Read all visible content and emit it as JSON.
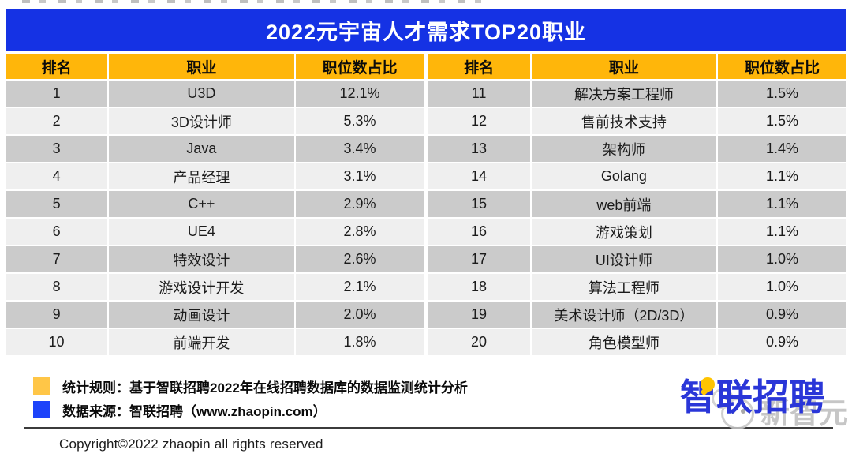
{
  "title_bar": {
    "title": "2022元宇宙人才需求TOP20职业"
  },
  "table": {
    "headers": [
      "排名",
      "职业",
      "职位数占比"
    ],
    "left_rows": [
      {
        "rank": "1",
        "job": "U3D",
        "share": "12.1%"
      },
      {
        "rank": "2",
        "job": "3D设计师",
        "share": "5.3%"
      },
      {
        "rank": "3",
        "job": "Java",
        "share": "3.4%"
      },
      {
        "rank": "4",
        "job": "产品经理",
        "share": "3.1%"
      },
      {
        "rank": "5",
        "job": "C++",
        "share": "2.9%"
      },
      {
        "rank": "6",
        "job": "UE4",
        "share": "2.8%"
      },
      {
        "rank": "7",
        "job": "特效设计",
        "share": "2.6%"
      },
      {
        "rank": "8",
        "job": "游戏设计开发",
        "share": "2.1%"
      },
      {
        "rank": "9",
        "job": "动画设计",
        "share": "2.0%"
      },
      {
        "rank": "10",
        "job": "前端开发",
        "share": "1.8%"
      }
    ],
    "right_rows": [
      {
        "rank": "11",
        "job": "解决方案工程师",
        "share": "1.5%"
      },
      {
        "rank": "12",
        "job": "售前技术支持",
        "share": "1.5%"
      },
      {
        "rank": "13",
        "job": "架构师",
        "share": "1.4%"
      },
      {
        "rank": "14",
        "job": "Golang",
        "share": "1.1%"
      },
      {
        "rank": "15",
        "job": "web前端",
        "share": "1.1%"
      },
      {
        "rank": "16",
        "job": "游戏策划",
        "share": "1.1%"
      },
      {
        "rank": "17",
        "job": "UI设计师",
        "share": "1.0%"
      },
      {
        "rank": "18",
        "job": "算法工程师",
        "share": "1.0%"
      },
      {
        "rank": "19",
        "job": "美术设计师（2D/3D）",
        "share": "0.9%"
      },
      {
        "rank": "20",
        "job": "角色模型师",
        "share": "0.9%"
      }
    ]
  },
  "chart_data": {
    "type": "table",
    "title": "2022元宇宙人才需求TOP20职业",
    "columns": [
      "排名",
      "职业",
      "职位数占比"
    ],
    "rows": [
      [
        1,
        "U3D",
        "12.1%"
      ],
      [
        2,
        "3D设计师",
        "5.3%"
      ],
      [
        3,
        "Java",
        "3.4%"
      ],
      [
        4,
        "产品经理",
        "3.1%"
      ],
      [
        5,
        "C++",
        "2.9%"
      ],
      [
        6,
        "UE4",
        "2.8%"
      ],
      [
        7,
        "特效设计",
        "2.6%"
      ],
      [
        8,
        "游戏设计开发",
        "2.1%"
      ],
      [
        9,
        "动画设计",
        "2.0%"
      ],
      [
        10,
        "前端开发",
        "1.8%"
      ],
      [
        11,
        "解决方案工程师",
        "1.5%"
      ],
      [
        12,
        "售前技术支持",
        "1.5%"
      ],
      [
        13,
        "架构师",
        "1.4%"
      ],
      [
        14,
        "Golang",
        "1.1%"
      ],
      [
        15,
        "web前端",
        "1.1%"
      ],
      [
        16,
        "游戏策划",
        "1.1%"
      ],
      [
        17,
        "UI设计师",
        "1.0%"
      ],
      [
        18,
        "算法工程师",
        "1.0%"
      ],
      [
        19,
        "美术设计师（2D/3D）",
        "0.9%"
      ],
      [
        20,
        "角色模型师",
        "0.9%"
      ]
    ],
    "values_unit": "percent of job postings",
    "layout": {
      "panels": 2,
      "rows_per_panel": 10
    }
  },
  "notes": {
    "stat_rule": "统计规则：基于智联招聘2022年在线招聘数据库的数据监测统计分析",
    "data_source": "数据来源：智联招聘（www.zhaopin.com）"
  },
  "branding": {
    "logo_text": "智联招聘",
    "watermark_text": "新智元"
  },
  "footer": {
    "copyright": "Copyright©2022 zhaopin all rights reserved"
  },
  "colors": {
    "title_bar_blue": "#1532E4",
    "header_yellow": "#FFB60A",
    "row_dark": "#CBCBCB",
    "row_light": "#EFEFEF",
    "note_yellow": "#FFC647",
    "note_blue": "#1D43FA",
    "logo_blue": "#2A36D8",
    "logo_dot_yellow": "#FFC400"
  }
}
